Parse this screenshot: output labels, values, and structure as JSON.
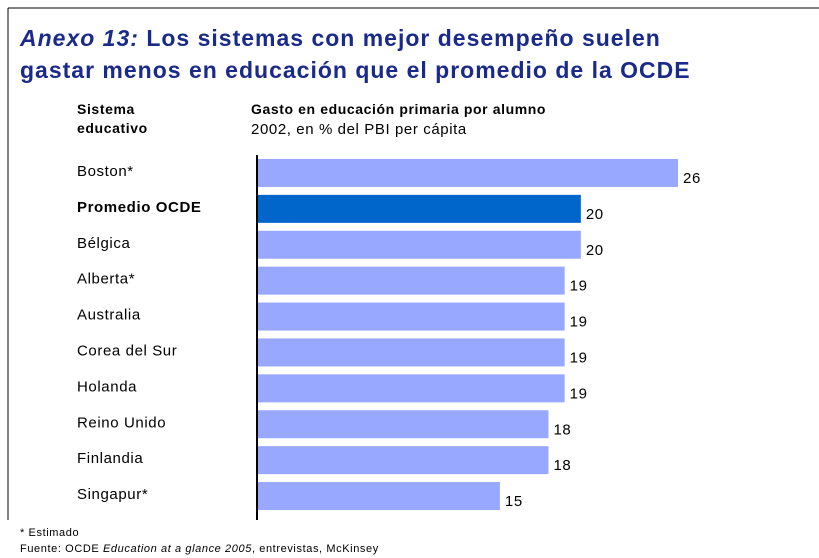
{
  "chart_data": {
    "type": "bar",
    "orientation": "horizontal",
    "title_prefix": "Anexo 13:",
    "title": [
      "Los sistemas con mejor desempeño suelen",
      "gastar menos en educación que el promedio de la OCDE"
    ],
    "category_header": [
      "Sistema",
      "educativo"
    ],
    "value_header": "Gasto en educación primaria por alumno",
    "subtitle": "2002, en % del PBI per cápita",
    "categories": [
      "Boston*",
      "Promedio OCDE",
      "Bélgica",
      "Alberta*",
      "Australia",
      "Corea del Sur",
      "Holanda",
      "Reino Unido",
      "Finlandia",
      "Singapur*"
    ],
    "values": [
      26,
      20,
      20,
      19,
      19,
      19,
      19,
      18,
      18,
      15
    ],
    "color": "#99a8ff",
    "highlight": "Promedio OCDE",
    "highlight_color": "#0066cc",
    "xlim": [
      0,
      26
    ],
    "footnote": "* Estimado",
    "source": [
      "Fuente: OCDE ",
      "Education at a glance 2005",
      ", entrevistas, McKinsey"
    ]
  }
}
